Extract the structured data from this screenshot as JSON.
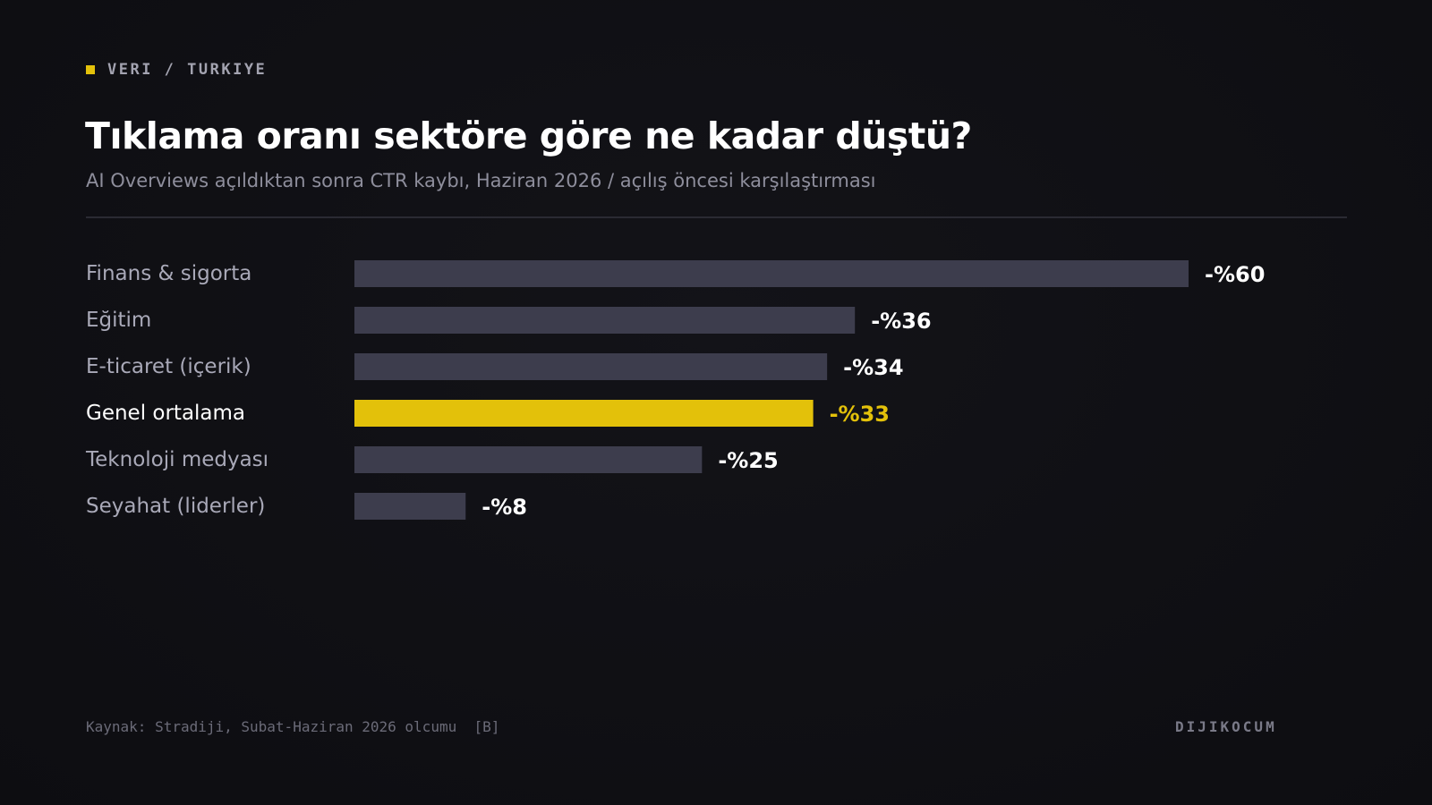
{
  "kicker": "VERI / TURKIYE",
  "colors": {
    "background": "#0f0f13",
    "bar": "#3d3d4d",
    "highlight": "#e3c10a",
    "label": "#a9a9b8",
    "value": "#ffffff"
  },
  "chart_data": {
    "type": "bar",
    "orientation": "horizontal",
    "title": "Tıklama oranı sektöre göre ne kadar düştü?",
    "subtitle": "AI Overviews açıldıktan sonra CTR kaybı, Haziran 2026 / açılış öncesi karşılaştırması",
    "categories": [
      "Finans & sigorta",
      "Eğitim",
      "E-ticaret (içerik)",
      "Genel ortalama",
      "Teknoloji medyası",
      "Seyahat (liderler)"
    ],
    "values": [
      60,
      36,
      34,
      33,
      25,
      8
    ],
    "value_labels": [
      "-%60",
      "-%36",
      "-%34",
      "-%33",
      "-%25",
      "-%8"
    ],
    "highlight_index": 3,
    "xlim": [
      0,
      60
    ],
    "grid": false,
    "legend": "none"
  },
  "footer": {
    "source": "Kaynak: Stradiji, Subat-Haziran 2026 olcumu  [B]",
    "brand": "DIJIKOCUM"
  }
}
